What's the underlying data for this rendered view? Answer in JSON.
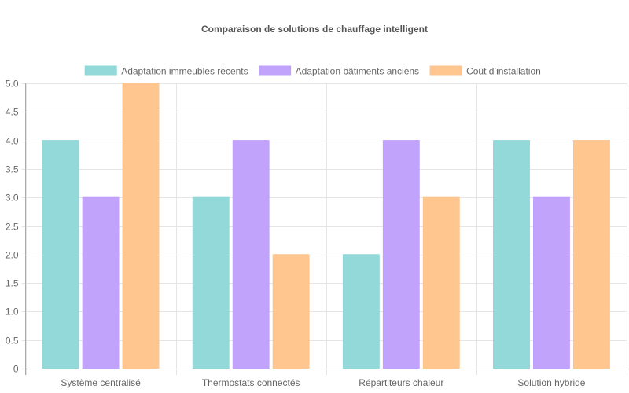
{
  "chart_data": {
    "type": "bar",
    "title": "Comparaison de solutions de chauffage intelligent",
    "categories": [
      "Système centralisé",
      "Thermostats connectés",
      "Répartiteurs chaleur",
      "Solution hybride"
    ],
    "series": [
      {
        "name": "Adaptation immeubles récents",
        "values": [
          4,
          3,
          2,
          4
        ],
        "color": "#93d9d9",
        "border": "#8fd6d6"
      },
      {
        "name": "Adaptation bâtiments anciens",
        "values": [
          3,
          4,
          4,
          3
        ],
        "color": "#c2a3fc",
        "border": "#bfa0fb"
      },
      {
        "name": "Coût d’installation",
        "values": [
          5,
          2,
          3,
          4
        ],
        "color": "#ffc78f",
        "border": "#fdc48c"
      }
    ],
    "ylim": [
      0,
      5
    ],
    "yticks": [
      "0",
      "0.5",
      "1.0",
      "1.5",
      "2.0",
      "2.5",
      "3.0",
      "3.5",
      "4.0",
      "4.5",
      "5.0"
    ],
    "grid": true,
    "legend_position": "top"
  }
}
